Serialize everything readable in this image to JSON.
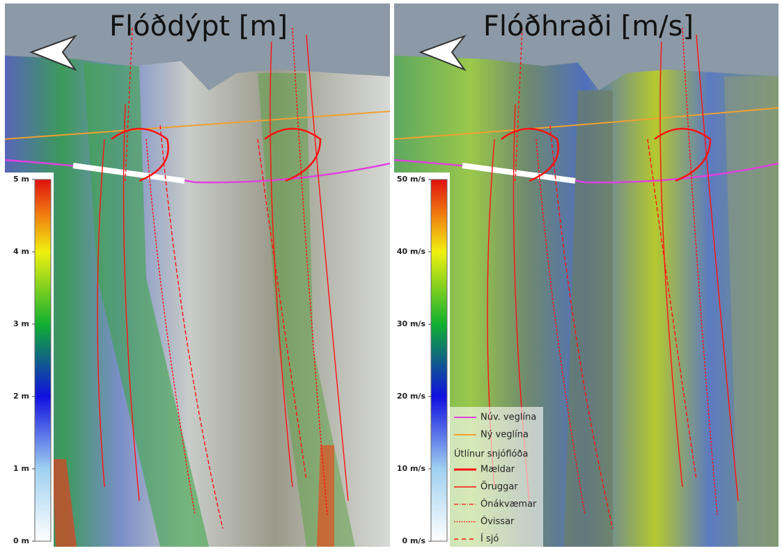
{
  "panels": [
    {
      "title": "Flóðdýpt [m]",
      "colorbar": {
        "range": [
          0,
          5
        ],
        "ticks": [
          {
            "value": 0,
            "label": "0 m"
          },
          {
            "value": 1,
            "label": "1 m"
          },
          {
            "value": 2,
            "label": "2 m"
          },
          {
            "value": 3,
            "label": "3 m"
          },
          {
            "value": 4,
            "label": "4 m"
          },
          {
            "value": 5,
            "label": "5 m"
          }
        ]
      }
    },
    {
      "title": "Flóðhraði [m/s]",
      "colorbar": {
        "range": [
          0,
          50
        ],
        "ticks": [
          {
            "value": 0,
            "label": "0 m/s"
          },
          {
            "value": 10,
            "label": "10 m/s"
          },
          {
            "value": 20,
            "label": "20 m/s"
          },
          {
            "value": 30,
            "label": "30 m/s"
          },
          {
            "value": 40,
            "label": "40 m/s"
          },
          {
            "value": 50,
            "label": "50 m/s"
          }
        ]
      }
    }
  ],
  "legend": {
    "roads": [
      {
        "label": "Núv. veglína",
        "color": "#e040e0"
      },
      {
        "label": "Ný veglína",
        "color": "#f0a030"
      }
    ],
    "heading": "Útlínur snjóflóða",
    "outlines": [
      {
        "label": "Mældar",
        "style": "thick",
        "color": "#ff1010"
      },
      {
        "label": "Öruggar",
        "style": "solid",
        "color": "#ff1010"
      },
      {
        "label": "Ónákvæmar",
        "style": "dashdot",
        "color": "#ff1010"
      },
      {
        "label": "Óvissar",
        "style": "dotted",
        "color": "#ff1010"
      },
      {
        "label": "Í sjó",
        "style": "dashed",
        "color": "#ff1010"
      }
    ]
  }
}
